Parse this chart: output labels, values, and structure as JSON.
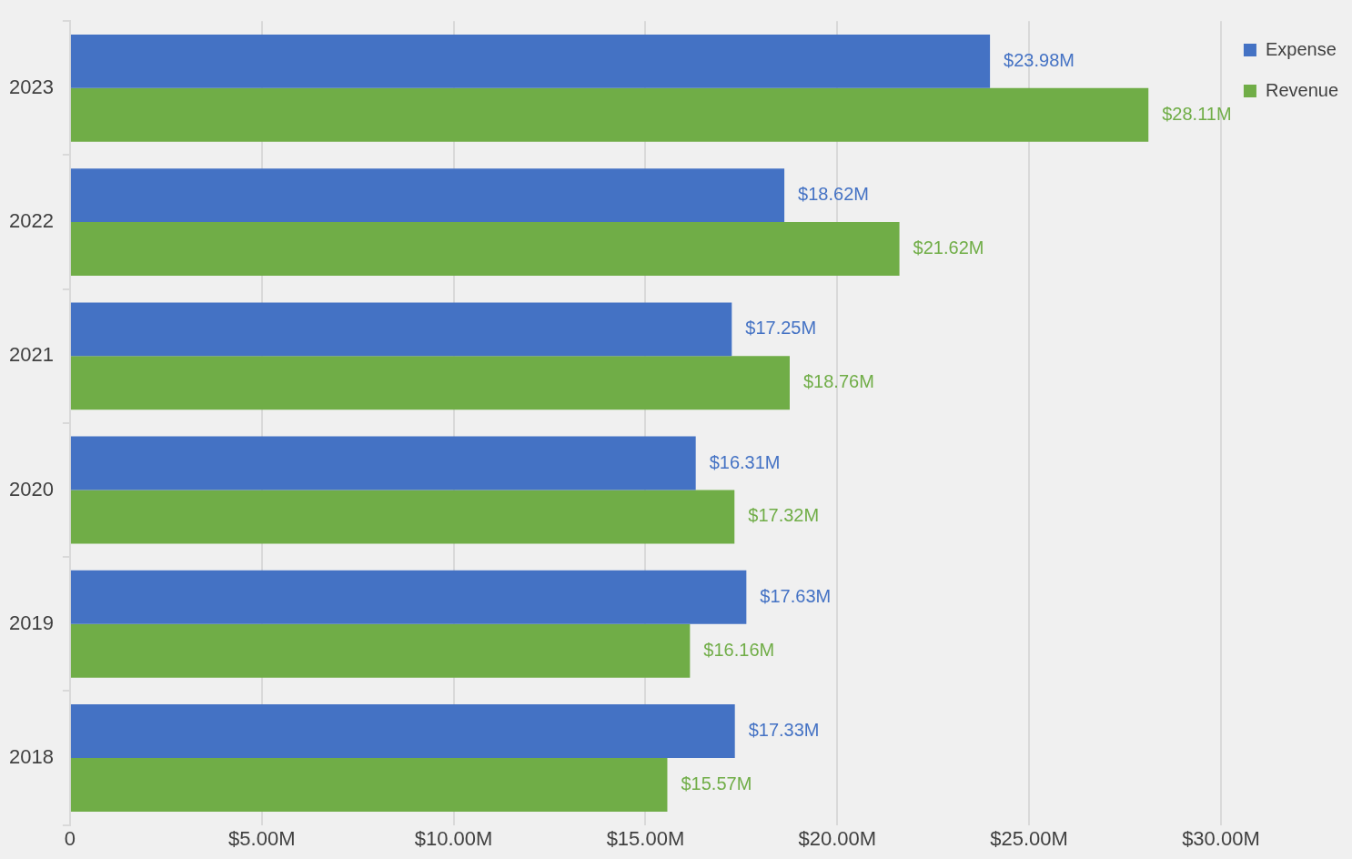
{
  "chart_data": {
    "type": "bar",
    "orientation": "horizontal",
    "categories": [
      "2023",
      "2022",
      "2021",
      "2020",
      "2019",
      "2018"
    ],
    "series": [
      {
        "name": "Expense",
        "color": "#4472c4",
        "values": [
          23.98,
          18.62,
          17.25,
          16.31,
          17.63,
          17.33
        ],
        "value_labels": [
          "$23.98M",
          "$18.62M",
          "$17.25M",
          "$16.31M",
          "$17.63M",
          "$17.33M"
        ]
      },
      {
        "name": "Revenue",
        "color": "#70ad47",
        "values": [
          28.11,
          21.62,
          18.76,
          17.32,
          16.16,
          15.57
        ],
        "value_labels": [
          "$28.11M",
          "$21.62M",
          "$18.76M",
          "$17.32M",
          "$16.16M",
          "$15.57M"
        ]
      }
    ],
    "xlim": [
      0,
      30
    ],
    "xticks": [
      0,
      {
        "value": 5,
        "label": "$5.00M"
      },
      {
        "value": 10,
        "label": "$10.00M"
      },
      {
        "value": 15,
        "label": "$15.00M"
      },
      {
        "value": 20,
        "label": "$20.00M"
      },
      {
        "value": 25,
        "label": "$25.00M"
      },
      {
        "value": 30,
        "label": "$30.00M"
      }
    ],
    "grid": "x",
    "legend": "top right"
  }
}
